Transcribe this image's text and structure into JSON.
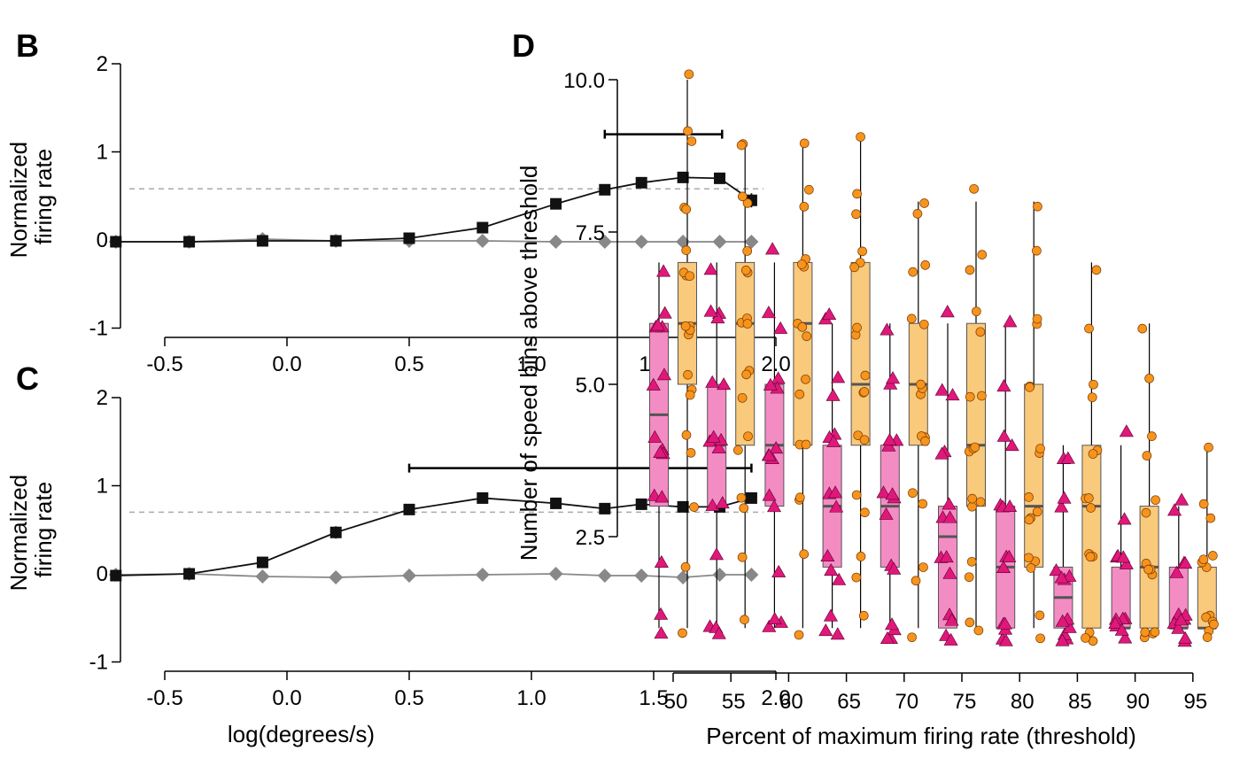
{
  "chart_data": [
    {
      "panel": "B",
      "type": "line",
      "ylabel": [
        "Normalized",
        "firing rate"
      ],
      "xlabel": "",
      "xlim": [
        -0.8,
        2.0
      ],
      "ylim": [
        -1,
        2
      ],
      "xticks": [
        "-0.5",
        "0.0",
        "0.5",
        "1.0",
        "1.5",
        "2.0"
      ],
      "yticks": [
        "-1",
        "0",
        "1",
        "2"
      ],
      "threshold": 0.58,
      "significance_bar": [
        1.3,
        1.78,
        1.2
      ],
      "series": [
        {
          "marker": "square",
          "color": "#111111",
          "x": [
            -0.7,
            -0.4,
            -0.1,
            0.2,
            0.5,
            0.8,
            1.1,
            1.3,
            1.45,
            1.62,
            1.77,
            1.9
          ],
          "y": [
            -0.02,
            -0.02,
            -0.01,
            -0.01,
            0.02,
            0.14,
            0.41,
            0.57,
            0.65,
            0.71,
            0.7,
            0.45
          ],
          "err": [
            0.02,
            0.02,
            0.02,
            0.02,
            0.03,
            0.05,
            0.05,
            0.05,
            0.04,
            0.05,
            0.05,
            0.08
          ]
        },
        {
          "marker": "diamond",
          "color": "#888888",
          "x": [
            -0.7,
            -0.4,
            -0.1,
            0.2,
            0.5,
            0.8,
            1.1,
            1.3,
            1.45,
            1.62,
            1.77,
            1.9
          ],
          "y": [
            -0.02,
            -0.02,
            0.01,
            -0.01,
            -0.01,
            -0.01,
            -0.02,
            -0.02,
            -0.02,
            -0.02,
            -0.02,
            -0.02
          ],
          "err": [
            0.01,
            0.01,
            0.01,
            0.01,
            0.01,
            0.01,
            0.01,
            0.01,
            0.01,
            0.01,
            0.01,
            0.01
          ]
        }
      ]
    },
    {
      "panel": "C",
      "type": "line",
      "ylabel": [
        "Normalized",
        "firing rate"
      ],
      "xlabel": "log(degrees/s)",
      "xlim": [
        -0.8,
        2.0
      ],
      "ylim": [
        -1,
        2
      ],
      "xticks": [
        "-0.5",
        "0.0",
        "0.5",
        "1.0",
        "1.5",
        "2.0"
      ],
      "yticks": [
        "-1",
        "0",
        "1",
        "2"
      ],
      "threshold": 0.7,
      "significance_bar": [
        0.5,
        1.9,
        1.2
      ],
      "series": [
        {
          "marker": "square",
          "color": "#111111",
          "x": [
            -0.7,
            -0.4,
            -0.1,
            0.2,
            0.5,
            0.8,
            1.1,
            1.3,
            1.45,
            1.62,
            1.77,
            1.9
          ],
          "y": [
            -0.02,
            0.0,
            0.13,
            0.47,
            0.73,
            0.86,
            0.8,
            0.74,
            0.79,
            0.76,
            0.76,
            0.86
          ],
          "err": [
            0.02,
            0.02,
            0.03,
            0.07,
            0.04,
            0.04,
            0.05,
            0.04,
            0.04,
            0.05,
            0.05,
            0.04
          ]
        },
        {
          "marker": "diamond",
          "color": "#888888",
          "x": [
            -0.7,
            -0.4,
            -0.1,
            0.2,
            0.5,
            0.8,
            1.1,
            1.3,
            1.45,
            1.62,
            1.77,
            1.9
          ],
          "y": [
            -0.01,
            0.0,
            -0.03,
            -0.04,
            -0.02,
            -0.01,
            0.0,
            -0.02,
            -0.02,
            -0.04,
            -0.01,
            -0.01
          ],
          "err": [
            0.01,
            0.01,
            0.01,
            0.01,
            0.01,
            0.01,
            0.01,
            0.01,
            0.01,
            0.01,
            0.01,
            0.01
          ]
        }
      ]
    },
    {
      "panel": "D",
      "type": "box",
      "xlabel": "Percent of maximum firing rate (threshold)",
      "ylabel": "Number of speed bins above threshold",
      "categories": [
        "50",
        "55",
        "60",
        "65",
        "70",
        "75",
        "80",
        "85",
        "90",
        "95"
      ],
      "ylim": [
        0.5,
        10.2
      ],
      "yticks": [
        "2.5",
        "5.0",
        "7.5",
        "10.0"
      ],
      "series": [
        {
          "marker": "triangle",
          "color": "#e0187a",
          "box_color": "#f48cc4",
          "boxes": [
            {
              "min": 1,
              "q1": 3,
              "median": 4.5,
              "q3": 6,
              "max": 7
            },
            {
              "min": 1,
              "q1": 3,
              "median": 4,
              "q3": 5,
              "max": 7
            },
            {
              "min": 1,
              "q1": 3,
              "median": 4,
              "q3": 5,
              "max": 7
            },
            {
              "min": 1,
              "q1": 2,
              "median": 3,
              "q3": 4,
              "max": 6
            },
            {
              "min": 1,
              "q1": 2,
              "median": 3,
              "q3": 4,
              "max": 6
            },
            {
              "min": 1,
              "q1": 1,
              "median": 2.5,
              "q3": 3,
              "max": 6
            },
            {
              "min": 1,
              "q1": 1,
              "median": 2,
              "q3": 3,
              "max": 6
            },
            {
              "min": 1,
              "q1": 1,
              "median": 1.5,
              "q3": 2,
              "max": 4
            },
            {
              "min": 1,
              "q1": 1,
              "median": 1,
              "q3": 2,
              "max": 4
            },
            {
              "min": 1,
              "q1": 1,
              "median": 1,
              "q3": 2,
              "max": 3
            }
          ],
          "points": [
            [
              1,
              1,
              2,
              3,
              3,
              4,
              4,
              4,
              4,
              5,
              5,
              6,
              6,
              6,
              6,
              7
            ],
            [
              1,
              1,
              1,
              2,
              3,
              3,
              4,
              4,
              4,
              4,
              5,
              5,
              6,
              6,
              6,
              7
            ],
            [
              1,
              1,
              1,
              2,
              3,
              3,
              4,
              4,
              4,
              4,
              5,
              5,
              5,
              6,
              6,
              7
            ],
            [
              1,
              1,
              1,
              2,
              2,
              2,
              3,
              3,
              3,
              4,
              4,
              4,
              5,
              5,
              6,
              6
            ],
            [
              1,
              1,
              1,
              1,
              2,
              2,
              3,
              3,
              3,
              3,
              4,
              4,
              4,
              5,
              5,
              6
            ],
            [
              1,
              1,
              1,
              1,
              2,
              2,
              2,
              3,
              3,
              3,
              4,
              4,
              5,
              5,
              6
            ],
            [
              1,
              1,
              1,
              1,
              1,
              2,
              2,
              2,
              3,
              3,
              3,
              4,
              4,
              5,
              6
            ],
            [
              1,
              1,
              1,
              1,
              1,
              1,
              2,
              2,
              2,
              2,
              3,
              3,
              4,
              4
            ],
            [
              1,
              1,
              1,
              1,
              1,
              1,
              1,
              2,
              2,
              2,
              2,
              3,
              4
            ],
            [
              1,
              1,
              1,
              1,
              1,
              1,
              1,
              1,
              2,
              2,
              2,
              3,
              3
            ]
          ]
        },
        {
          "marker": "circle",
          "color": "#f7941d",
          "box_color": "#f9c97c",
          "boxes": [
            {
              "min": 1,
              "q1": 5,
              "median": 6,
              "q3": 7,
              "max": 10
            },
            {
              "min": 1,
              "q1": 4,
              "median": 6,
              "q3": 7,
              "max": 9
            },
            {
              "min": 1,
              "q1": 4,
              "median": 6,
              "q3": 7,
              "max": 9
            },
            {
              "min": 1,
              "q1": 4,
              "median": 5,
              "q3": 7,
              "max": 9
            },
            {
              "min": 1,
              "q1": 4,
              "median": 5,
              "q3": 6,
              "max": 8
            },
            {
              "min": 1,
              "q1": 3,
              "median": 4,
              "q3": 6,
              "max": 8
            },
            {
              "min": 1,
              "q1": 2,
              "median": 3,
              "q3": 5,
              "max": 8
            },
            {
              "min": 1,
              "q1": 1,
              "median": 3,
              "q3": 4,
              "max": 7
            },
            {
              "min": 1,
              "q1": 1,
              "median": 2,
              "q3": 3,
              "max": 6
            },
            {
              "min": 1,
              "q1": 1,
              "median": 1,
              "q3": 2,
              "max": 4
            }
          ],
          "points": [
            [
              1,
              2,
              3,
              4,
              4,
              5,
              5,
              5,
              6,
              6,
              6,
              6,
              7,
              7,
              7,
              7,
              8,
              8,
              9,
              9,
              10
            ],
            [
              1,
              2,
              3,
              3,
              4,
              4,
              5,
              5,
              5,
              6,
              6,
              6,
              7,
              7,
              7,
              8,
              8,
              9,
              9
            ],
            [
              1,
              2,
              3,
              3,
              4,
              4,
              5,
              5,
              6,
              6,
              6,
              7,
              7,
              7,
              8,
              8,
              9
            ],
            [
              1,
              2,
              2,
              3,
              3,
              4,
              4,
              5,
              5,
              5,
              6,
              6,
              7,
              7,
              7,
              8,
              8,
              9
            ],
            [
              1,
              2,
              2,
              3,
              3,
              4,
              4,
              4,
              5,
              5,
              5,
              6,
              6,
              7,
              7,
              8,
              8
            ],
            [
              1,
              1,
              2,
              2,
              3,
              3,
              3,
              4,
              4,
              4,
              5,
              5,
              6,
              6,
              7,
              7,
              8
            ],
            [
              1,
              1,
              2,
              2,
              2,
              3,
              3,
              3,
              3,
              4,
              4,
              5,
              5,
              6,
              6,
              7,
              8
            ],
            [
              1,
              1,
              1,
              2,
              2,
              2,
              3,
              3,
              3,
              4,
              4,
              5,
              5,
              6,
              7
            ],
            [
              1,
              1,
              1,
              1,
              2,
              2,
              2,
              2,
              3,
              3,
              4,
              4,
              5,
              6
            ],
            [
              1,
              1,
              1,
              1,
              1,
              1,
              2,
              2,
              2,
              2,
              3,
              3,
              4
            ]
          ]
        }
      ]
    }
  ]
}
